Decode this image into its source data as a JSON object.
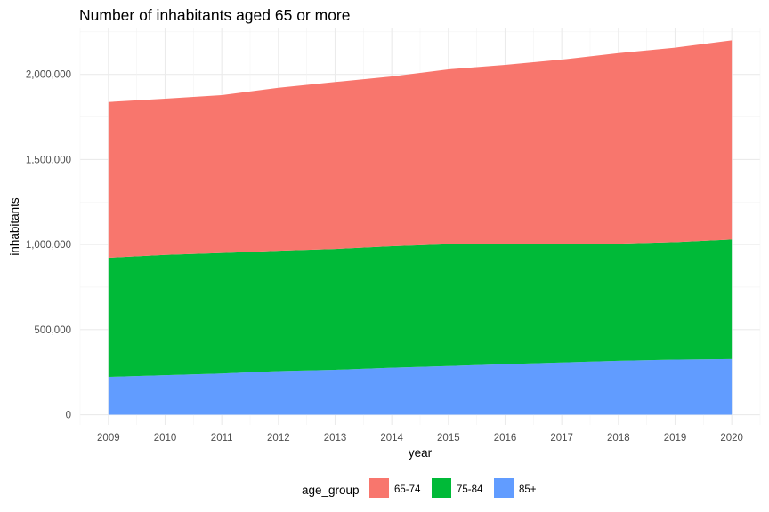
{
  "chart_data": {
    "type": "area",
    "stacked": true,
    "title": "Number of inhabitants aged 65 or more",
    "xlabel": "year",
    "ylabel": "inhabitants",
    "x": [
      2009,
      2010,
      2011,
      2012,
      2013,
      2014,
      2015,
      2016,
      2017,
      2018,
      2019,
      2020
    ],
    "ylim": [
      -60000,
      2270000
    ],
    "yticks": [
      0,
      500000,
      1000000,
      1500000,
      2000000
    ],
    "ytick_labels": [
      "0",
      "500,000",
      "1,000,000",
      "1,500,000",
      "2,000,000"
    ],
    "grid": true,
    "legend": {
      "title": "age_group",
      "position": "bottom"
    },
    "series": [
      {
        "name": "65-74",
        "color": "#F8766D",
        "values": [
          916000,
          918000,
          928000,
          958000,
          981000,
          998000,
          1028000,
          1053000,
          1082000,
          1120000,
          1143000,
          1170000
        ]
      },
      {
        "name": "75-84",
        "color": "#00BA38",
        "values": [
          700000,
          707000,
          708000,
          707000,
          710000,
          714000,
          716000,
          706000,
          698000,
          688000,
          690000,
          703000
        ]
      },
      {
        "name": "85+",
        "color": "#619CFF",
        "values": [
          222000,
          232000,
          242000,
          256000,
          264000,
          276000,
          286000,
          297000,
          307000,
          317000,
          324000,
          327000
        ]
      }
    ]
  }
}
